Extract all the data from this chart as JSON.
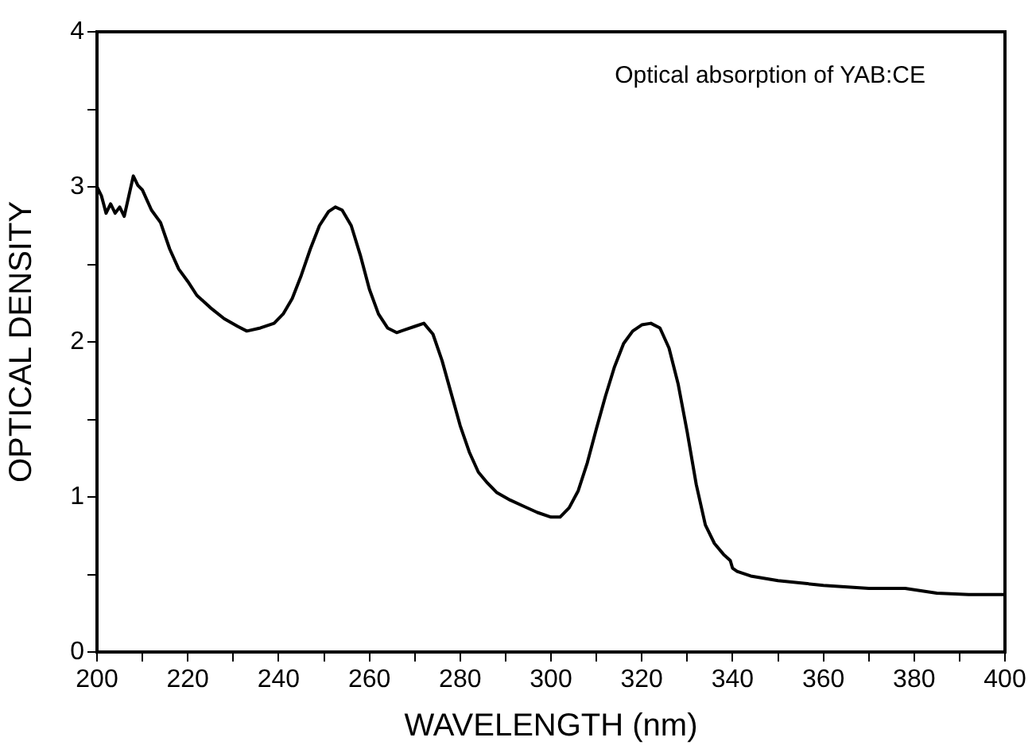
{
  "chart_data": {
    "type": "line",
    "xlabel": "WAVELENGTH (nm)",
    "ylabel": "OPTICAL DENSITY",
    "annotations": [
      "Optical absorption of YAB:CE"
    ],
    "x": [
      200,
      201,
      202,
      203,
      204,
      205,
      206,
      207,
      208,
      209,
      210,
      212,
      214,
      216,
      218,
      220,
      222,
      225,
      228,
      231,
      233,
      236,
      239,
      241,
      243,
      245,
      247,
      249,
      251,
      252.5,
      254,
      256,
      258,
      260,
      262,
      264,
      266,
      268,
      270,
      272,
      274,
      276,
      278,
      280,
      282,
      284,
      286,
      288,
      291,
      294,
      297,
      300,
      302,
      304,
      306,
      308,
      310,
      312,
      314,
      316,
      318,
      320,
      322,
      324,
      326,
      328,
      330,
      332,
      334,
      336,
      338,
      339.5,
      340,
      341,
      344,
      350,
      360,
      370,
      378,
      385,
      392,
      400
    ],
    "series": [
      {
        "color": "#000000",
        "values": [
          3.0,
          2.94,
          2.83,
          2.89,
          2.83,
          2.87,
          2.81,
          2.94,
          3.07,
          3.01,
          2.98,
          2.85,
          2.77,
          2.6,
          2.47,
          2.39,
          2.3,
          2.22,
          2.15,
          2.1,
          2.07,
          2.09,
          2.12,
          2.18,
          2.28,
          2.43,
          2.6,
          2.75,
          2.84,
          2.87,
          2.85,
          2.75,
          2.56,
          2.34,
          2.18,
          2.09,
          2.06,
          2.08,
          2.1,
          2.12,
          2.05,
          1.88,
          1.67,
          1.46,
          1.29,
          1.16,
          1.09,
          1.03,
          0.98,
          0.94,
          0.9,
          0.87,
          0.87,
          0.93,
          1.04,
          1.22,
          1.44,
          1.65,
          1.84,
          1.99,
          2.07,
          2.11,
          2.12,
          2.09,
          1.96,
          1.73,
          1.42,
          1.08,
          0.82,
          0.7,
          0.63,
          0.59,
          0.54,
          0.52,
          0.49,
          0.46,
          0.43,
          0.41,
          0.41,
          0.38,
          0.37,
          0.37
        ]
      }
    ],
    "xlim": [
      200,
      400
    ],
    "ylim": [
      0,
      4
    ],
    "xticks": [
      200,
      {
        "value": 210,
        "label": null
      },
      220,
      {
        "value": 230,
        "label": null
      },
      240,
      {
        "value": 250,
        "label": null
      },
      260,
      {
        "value": 270,
        "label": null
      },
      280,
      {
        "value": 290,
        "label": null
      },
      300,
      {
        "value": 310,
        "label": null
      },
      320,
      {
        "value": 330,
        "label": null
      },
      340,
      {
        "value": 350,
        "label": null
      },
      360,
      {
        "value": 370,
        "label": null
      },
      380,
      {
        "value": 390,
        "label": null
      },
      400
    ],
    "yticks": [
      0,
      {
        "value": 0.5,
        "label": null
      },
      1,
      {
        "value": 1.5,
        "label": null
      },
      2,
      {
        "value": 2.5,
        "label": null
      },
      3,
      {
        "value": 3.5,
        "label": null
      },
      4
    ],
    "grid": false,
    "legend": false,
    "marker": "none",
    "line_style": "solid"
  }
}
